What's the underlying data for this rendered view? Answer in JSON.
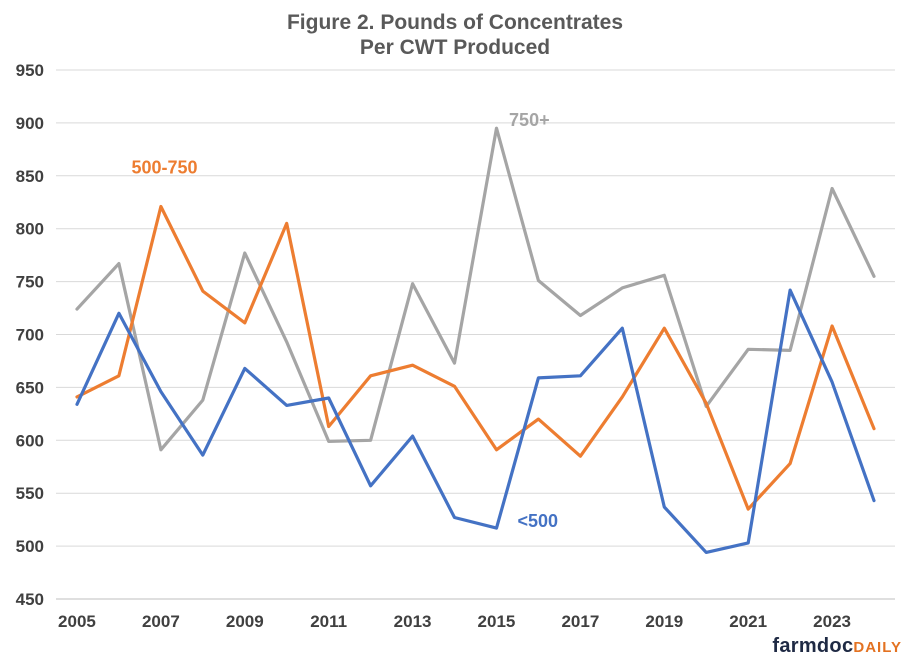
{
  "chart_data": {
    "type": "line",
    "title": "Figure  2. Pounds of Concentrates",
    "subtitle": "Per CWT Produced",
    "x": [
      2005,
      2006,
      2007,
      2008,
      2009,
      2010,
      2011,
      2012,
      2013,
      2014,
      2015,
      2016,
      2017,
      2018,
      2019,
      2020,
      2021,
      2022,
      2023,
      2024
    ],
    "x_tick_labels": [
      "2005",
      "2007",
      "2009",
      "2011",
      "2013",
      "2015",
      "2017",
      "2019",
      "2021",
      "2023"
    ],
    "y_tick_labels": [
      "450",
      "500",
      "550",
      "600",
      "650",
      "700",
      "750",
      "800",
      "850",
      "900",
      "950"
    ],
    "ylim": [
      450,
      950
    ],
    "grid": "horizontal",
    "series": [
      {
        "name": "<500",
        "color": "#4472c4",
        "values": [
          634,
          720,
          646,
          586,
          668,
          633,
          640,
          557,
          604,
          527,
          517,
          659,
          661,
          706,
          537,
          494,
          503,
          742,
          655,
          543
        ]
      },
      {
        "name": "500-750",
        "color": "#ed7d31",
        "values": [
          641,
          661,
          821,
          741,
          711,
          805,
          613,
          661,
          671,
          651,
          591,
          620,
          585,
          641,
          706,
          635,
          535,
          578,
          708,
          611
        ]
      },
      {
        "name": "750+",
        "color": "#a5a5a5",
        "values": [
          724,
          767,
          591,
          638,
          777,
          693,
          599,
          600,
          748,
          673,
          895,
          751,
          718,
          744,
          756,
          632,
          686,
          685,
          838,
          755
        ]
      }
    ]
  },
  "logo": {
    "part1": "farmdoc",
    "part2": "DAILY"
  }
}
